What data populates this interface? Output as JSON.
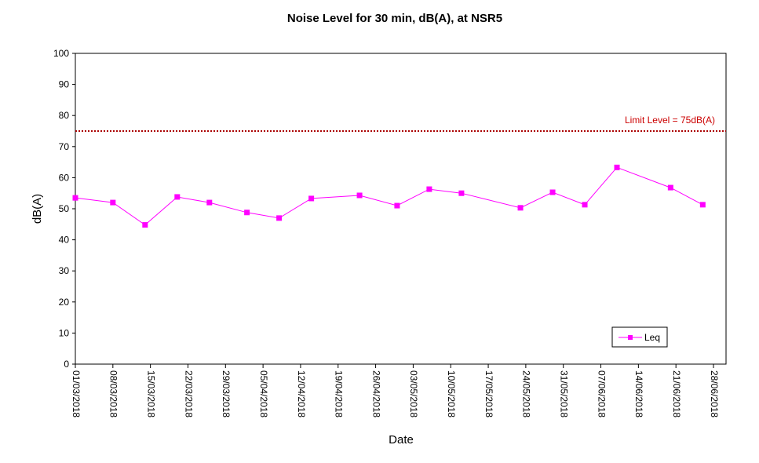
{
  "chart_data": {
    "type": "line",
    "title": "Noise Level for 30 min, dB(A), at NSR5",
    "xlabel": "Date",
    "ylabel": "dB(A)",
    "ylim": [
      0,
      100
    ],
    "yticks": [
      0,
      10,
      20,
      30,
      40,
      50,
      60,
      70,
      80,
      90,
      100
    ],
    "xlim": [
      "2018-03-01",
      "2018-06-28"
    ],
    "xticks": [
      "01/03/2018",
      "08/03/2018",
      "15/03/2018",
      "22/03/2018",
      "29/03/2018",
      "05/04/2018",
      "12/04/2018",
      "19/04/2018",
      "26/04/2018",
      "03/05/2018",
      "10/05/2018",
      "17/05/2018",
      "24/05/2018",
      "31/05/2018",
      "07/06/2018",
      "14/06/2018",
      "21/06/2018",
      "28/06/2018"
    ],
    "grid": false,
    "legend_position": "bottom-right",
    "series": [
      {
        "name": "Leq",
        "color": "#ff00ff",
        "marker": "square",
        "points": [
          {
            "x": "2018-03-01",
            "y": 53.5
          },
          {
            "x": "2018-03-08",
            "y": 52.0
          },
          {
            "x": "2018-03-14",
            "y": 44.8
          },
          {
            "x": "2018-03-20",
            "y": 53.8
          },
          {
            "x": "2018-03-26",
            "y": 52.0
          },
          {
            "x": "2018-04-02",
            "y": 48.8
          },
          {
            "x": "2018-04-08",
            "y": 47.0
          },
          {
            "x": "2018-04-14",
            "y": 53.3
          },
          {
            "x": "2018-04-23",
            "y": 54.3
          },
          {
            "x": "2018-04-30",
            "y": 51.0
          },
          {
            "x": "2018-05-06",
            "y": 56.3
          },
          {
            "x": "2018-05-12",
            "y": 55.0
          },
          {
            "x": "2018-05-23",
            "y": 50.3
          },
          {
            "x": "2018-05-29",
            "y": 55.3
          },
          {
            "x": "2018-06-04",
            "y": 51.3
          },
          {
            "x": "2018-06-10",
            "y": 63.3
          },
          {
            "x": "2018-06-20",
            "y": 56.8
          },
          {
            "x": "2018-06-26",
            "y": 51.3
          }
        ]
      }
    ],
    "reference_lines": [
      {
        "label": "Limit Level  = 75dB(A)",
        "y": 75,
        "color": "#aa0000",
        "style": "dotted"
      }
    ]
  }
}
